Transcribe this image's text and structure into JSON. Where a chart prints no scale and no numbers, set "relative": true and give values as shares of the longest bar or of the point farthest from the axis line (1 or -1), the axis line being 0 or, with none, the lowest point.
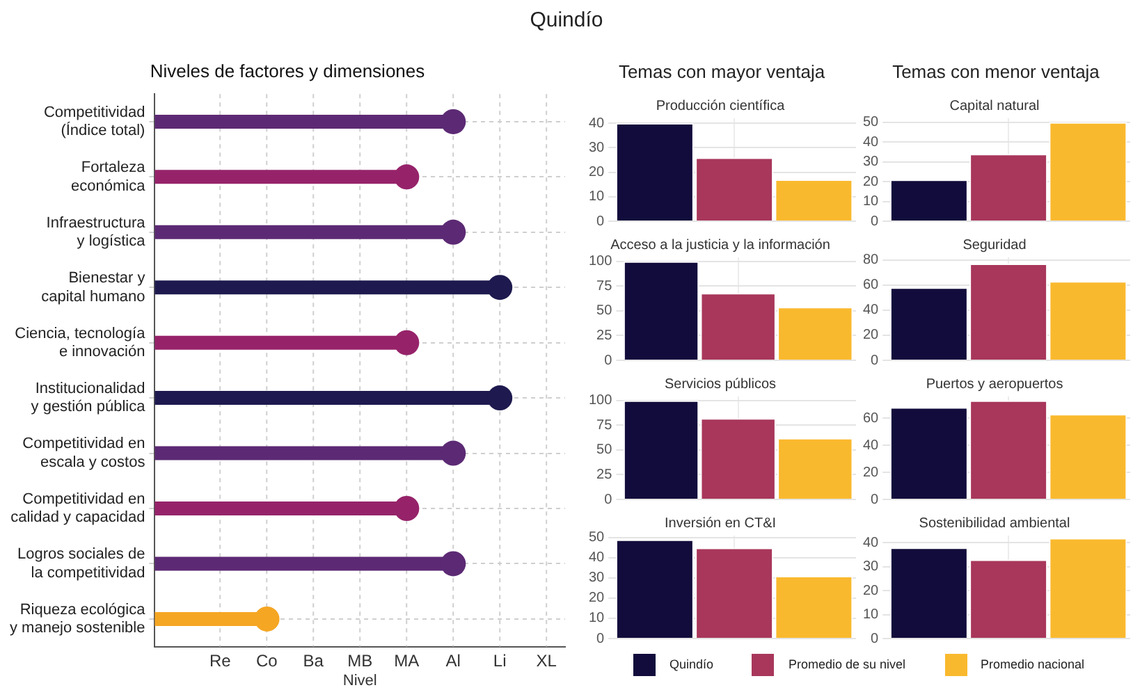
{
  "chart_data": [
    {
      "type": "lollipop",
      "orientation": "horizontal",
      "title": "Niveles de factores y dimensiones",
      "xlabel": "Nivel",
      "relative": true,
      "annotations": [
        "Quindío",
        "Re",
        "Co",
        "Ba",
        "MB",
        "MA",
        "Al",
        "Li",
        "XL"
      ],
      "categories": [
        "Competitividad (Índice total)",
        "Fortaleza económica",
        "Infraestructura y logística",
        "Bienestar y capital humano",
        "Ciencia, tecnología e innovación",
        "Institucionalidad y gestión pública",
        "Competitividad en escala y costos",
        "Competitividad en calidad y capacidad",
        "Logros sociales de la competitividad",
        "Riqueza ecológica y manejo sostenible"
      ],
      "values": [
        0.865,
        0.73,
        0.865,
        1,
        0.73,
        1,
        0.865,
        0.73,
        0.865,
        0.325
      ],
      "colors": [
        "#5c2a74",
        "#96236a",
        "#5c2a74",
        "#1e1a4f",
        "#96236a",
        "#1e1a4f",
        "#5c2a74",
        "#96236a",
        "#5c2a74",
        "#f5a623"
      ],
      "grid": true,
      "marker": "circle"
    },
    {
      "type": "bar",
      "title": "Producción científica",
      "annotations": [
        "Temas con mayor ventaja"
      ],
      "categories": [
        null
      ],
      "series": [
        {
          "color": "#120c3c",
          "values": [
            40
          ]
        },
        {
          "color": "#a8375b",
          "values": [
            26
          ]
        },
        {
          "color": "#f9b92e",
          "values": [
            17
          ]
        }
      ],
      "ylim": [
        0,
        42
      ],
      "yticks": [
        0,
        10,
        20,
        30,
        40
      ],
      "grid": true
    },
    {
      "type": "bar",
      "title": "Capital natural",
      "annotations": [
        "Temas con menor ventaja"
      ],
      "categories": [
        null
      ],
      "series": [
        {
          "color": "#120c3c",
          "values": [
            21
          ]
        },
        {
          "color": "#a8375b",
          "values": [
            34
          ]
        },
        {
          "color": "#f9b92e",
          "values": [
            50
          ]
        }
      ],
      "ylim": [
        0,
        52
      ],
      "yticks": [
        0,
        10,
        20,
        30,
        40,
        50
      ],
      "grid": true
    },
    {
      "type": "bar",
      "title": "Acceso a la justicia y la información",
      "categories": [
        null
      ],
      "series": [
        {
          "color": "#120c3c",
          "values": [
            100
          ]
        },
        {
          "color": "#a8375b",
          "values": [
            68
          ]
        },
        {
          "color": "#f9b92e",
          "values": [
            54
          ]
        }
      ],
      "ylim": [
        0,
        104
      ],
      "yticks": [
        0,
        25,
        50,
        75,
        100
      ],
      "grid": true
    },
    {
      "type": "bar",
      "title": "Seguridad",
      "categories": [
        null
      ],
      "series": [
        {
          "color": "#120c3c",
          "values": [
            58
          ]
        },
        {
          "color": "#a8375b",
          "values": [
            77
          ]
        },
        {
          "color": "#f9b92e",
          "values": [
            63
          ]
        }
      ],
      "ylim": [
        0,
        82
      ],
      "yticks": [
        0,
        20,
        40,
        60,
        80
      ],
      "grid": true
    },
    {
      "type": "bar",
      "title": "Servicios públicos",
      "categories": [
        null
      ],
      "series": [
        {
          "color": "#120c3c",
          "values": [
            100
          ]
        },
        {
          "color": "#a8375b",
          "values": [
            82
          ]
        },
        {
          "color": "#f9b92e",
          "values": [
            62
          ]
        }
      ],
      "ylim": [
        0,
        104
      ],
      "yticks": [
        0,
        25,
        50,
        75,
        100
      ],
      "grid": true
    },
    {
      "type": "bar",
      "title": "Puertos y aeropuertos",
      "categories": [
        null
      ],
      "series": [
        {
          "color": "#120c3c",
          "values": [
            68
          ]
        },
        {
          "color": "#a8375b",
          "values": [
            73
          ]
        },
        {
          "color": "#f9b92e",
          "values": [
            63
          ]
        }
      ],
      "ylim": [
        0,
        76
      ],
      "yticks": [
        0,
        20,
        40,
        60
      ],
      "grid": true
    },
    {
      "type": "bar",
      "title": "Inversión en CT&I",
      "categories": [
        null
      ],
      "series": [
        {
          "color": "#120c3c",
          "values": [
            49
          ]
        },
        {
          "color": "#a8375b",
          "values": [
            45
          ]
        },
        {
          "color": "#f9b92e",
          "values": [
            31
          ]
        }
      ],
      "ylim": [
        0,
        51
      ],
      "yticks": [
        0,
        10,
        20,
        30,
        40,
        50
      ],
      "grid": true
    },
    {
      "type": "bar",
      "title": "Sostenibilidad ambiental",
      "categories": [
        null
      ],
      "legend": "bottom",
      "series": [
        {
          "name": "Quindío",
          "color": "#120c3c",
          "values": [
            38
          ]
        },
        {
          "name": "Promedio de su nivel",
          "color": "#a8375b",
          "values": [
            33
          ]
        },
        {
          "name": "Promedio nacional",
          "color": "#f9b92e",
          "values": [
            42
          ]
        }
      ],
      "ylim": [
        0,
        43
      ],
      "yticks": [
        0,
        10,
        20,
        30,
        40
      ],
      "grid": true
    }
  ]
}
